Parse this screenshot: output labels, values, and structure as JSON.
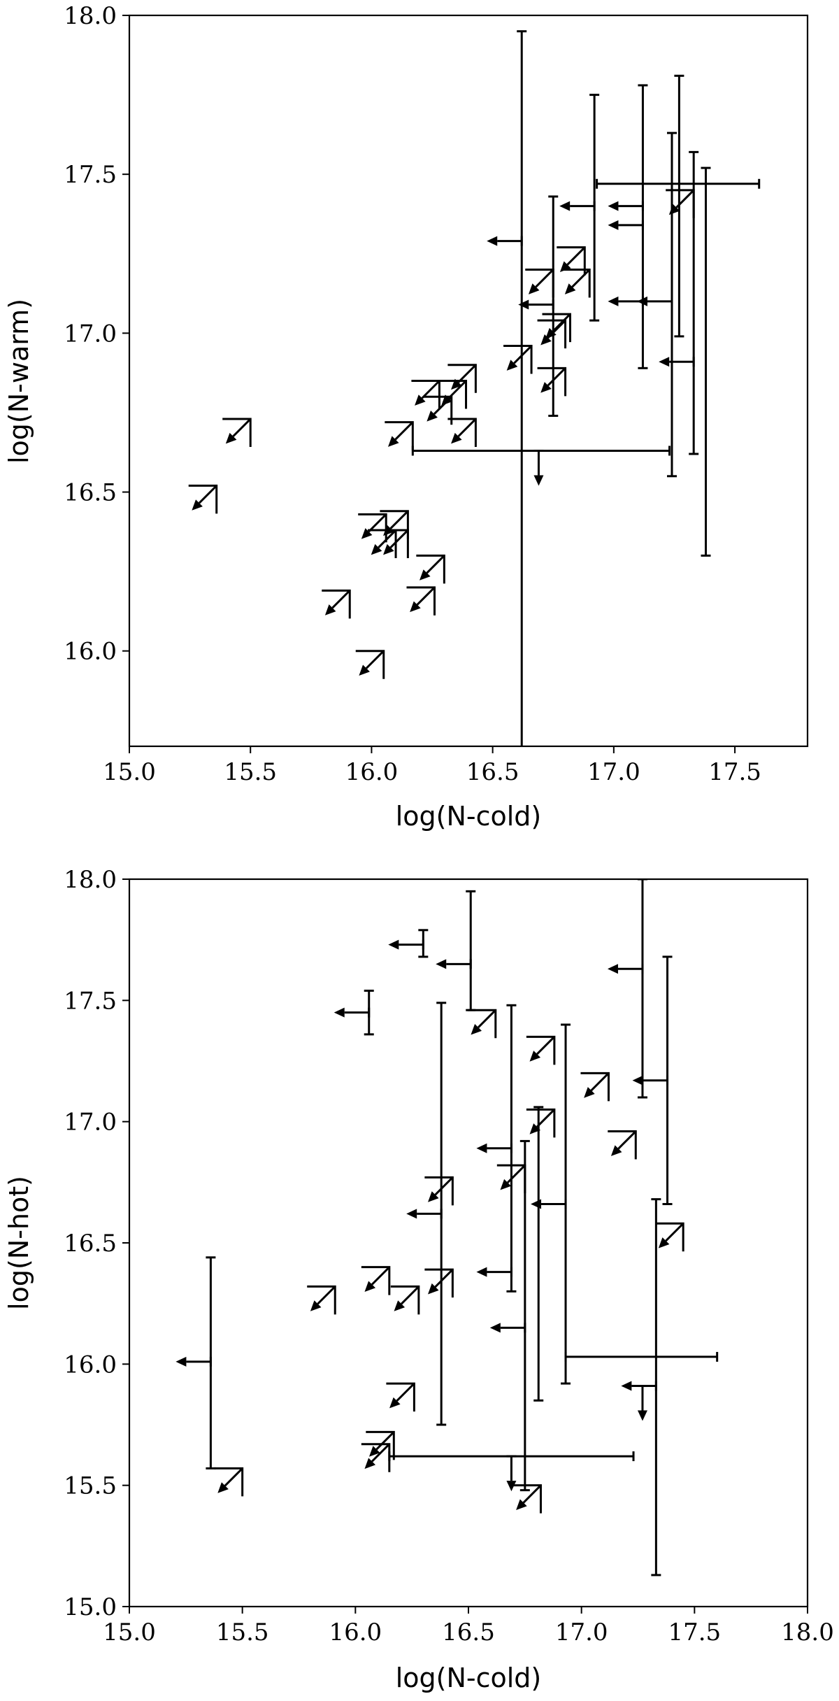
{
  "chart_data": [
    {
      "type": "scatter",
      "xlabel": "log(N-cold)",
      "ylabel": "log(N-warm)",
      "xlim": [
        15.0,
        17.8
      ],
      "ylim": [
        15.7,
        18.0
      ],
      "xticks": [
        "15.0",
        "15.5",
        "16.0",
        "16.5",
        "17.0",
        "17.5"
      ],
      "yticks": [
        "16.0",
        "16.5",
        "17.0",
        "17.5",
        "18.0"
      ],
      "grid": false,
      "points": [
        {
          "x": 16.62,
          "y": 16.63,
          "ylow": 15.0,
          "yhigh": 17.95,
          "xlow": 16.62,
          "xhigh": 16.62,
          "xl": false,
          "yl": false
        },
        {
          "x": 16.9,
          "y": 16.63,
          "xlow": 16.17,
          "xhigh": 17.23,
          "xl": false,
          "yl": false
        },
        {
          "x": 16.69,
          "y": 16.63,
          "xl": false,
          "yl": true
        },
        {
          "x": 16.92,
          "y": 17.4,
          "ylow": 17.04,
          "yhigh": 17.75,
          "xl": true,
          "yl": false
        },
        {
          "x": 17.12,
          "y": 17.4,
          "ylow": 16.89,
          "yhigh": 17.78,
          "xl": true,
          "yl": false
        },
        {
          "x": 17.27,
          "y": 17.47,
          "xlow": 16.93,
          "xhigh": 17.6,
          "xl": false,
          "yl": false
        },
        {
          "x": 17.27,
          "y": 17.4,
          "ylow": 16.99,
          "yhigh": 17.81,
          "xl": false,
          "yl": false
        },
        {
          "x": 17.24,
          "y": 17.1,
          "ylow": 16.55,
          "yhigh": 17.63,
          "xl": true,
          "yl": false
        },
        {
          "x": 17.33,
          "y": 16.91,
          "ylow": 16.62,
          "yhigh": 17.57,
          "xl": true,
          "yl": false
        },
        {
          "x": 17.38,
          "y": 16.91,
          "ylow": 16.3,
          "yhigh": 17.52,
          "xl": false,
          "yl": false
        },
        {
          "x": 17.12,
          "y": 17.1,
          "xl": true,
          "yl": false
        },
        {
          "x": 17.12,
          "y": 17.34,
          "xl": true,
          "yl": false
        },
        {
          "x": 16.62,
          "y": 17.29,
          "xl": true,
          "yl": false
        },
        {
          "x": 16.75,
          "y": 17.09,
          "ylow": 16.74,
          "yhigh": 17.43,
          "xl": true,
          "yl": false
        },
        {
          "x": 17.33,
          "y": 17.45,
          "xl": true,
          "yl": true
        },
        {
          "x": 16.9,
          "y": 17.2,
          "xl": true,
          "yl": true
        },
        {
          "x": 16.88,
          "y": 17.27,
          "xl": true,
          "yl": true
        },
        {
          "x": 16.82,
          "y": 17.06,
          "xl": true,
          "yl": true
        },
        {
          "x": 16.8,
          "y": 17.04,
          "xl": true,
          "yl": true
        },
        {
          "x": 16.8,
          "y": 16.89,
          "xl": true,
          "yl": true
        },
        {
          "x": 16.75,
          "y": 17.2,
          "xl": true,
          "yl": true
        },
        {
          "x": 16.66,
          "y": 16.96,
          "xl": true,
          "yl": true
        },
        {
          "x": 16.43,
          "y": 16.9,
          "xl": true,
          "yl": true
        },
        {
          "x": 16.39,
          "y": 16.85,
          "xl": true,
          "yl": true
        },
        {
          "x": 16.43,
          "y": 16.73,
          "xl": true,
          "yl": true
        },
        {
          "x": 16.33,
          "y": 16.8,
          "xl": true,
          "yl": true
        },
        {
          "x": 16.28,
          "y": 16.85,
          "xl": true,
          "yl": true
        },
        {
          "x": 16.17,
          "y": 16.72,
          "xl": true,
          "yl": true
        },
        {
          "x": 15.5,
          "y": 16.73,
          "xl": true,
          "yl": true
        },
        {
          "x": 15.36,
          "y": 16.52,
          "xl": true,
          "yl": true
        },
        {
          "x": 16.15,
          "y": 16.44,
          "xl": true,
          "yl": true
        },
        {
          "x": 16.15,
          "y": 16.38,
          "xl": true,
          "yl": true
        },
        {
          "x": 16.1,
          "y": 16.38,
          "xl": true,
          "yl": true
        },
        {
          "x": 16.06,
          "y": 16.43,
          "xl": true,
          "yl": true
        },
        {
          "x": 16.3,
          "y": 16.3,
          "xl": true,
          "yl": true
        },
        {
          "x": 16.26,
          "y": 16.2,
          "xl": true,
          "yl": true
        },
        {
          "x": 15.91,
          "y": 16.19,
          "xl": true,
          "yl": true
        },
        {
          "x": 16.05,
          "y": 16.0,
          "xl": true,
          "yl": true
        }
      ]
    },
    {
      "type": "scatter",
      "xlabel": "log(N-cold)",
      "ylabel": "log(N-hot)",
      "xlim": [
        15.0,
        18.0
      ],
      "ylim": [
        15.0,
        18.0
      ],
      "xticks": [
        "15.0",
        "15.5",
        "16.0",
        "16.5",
        "17.0",
        "17.5",
        "18.0"
      ],
      "yticks": [
        "15.0",
        "15.5",
        "16.0",
        "16.5",
        "17.0",
        "17.5",
        "18.0"
      ],
      "grid": false,
      "points": [
        {
          "x": 16.3,
          "y": 17.73,
          "ylow": 17.68,
          "yhigh": 17.79,
          "xl": true,
          "yl": false
        },
        {
          "x": 16.06,
          "y": 17.45,
          "ylow": 17.36,
          "yhigh": 17.54,
          "xl": true,
          "yl": false
        },
        {
          "x": 16.51,
          "y": 17.65,
          "ylow": 17.46,
          "yhigh": 17.95,
          "xl": true,
          "yl": false
        },
        {
          "x": 17.27,
          "y": 17.63,
          "ylow": 17.1,
          "yhigh": 18.0,
          "xl": true,
          "yl": false
        },
        {
          "x": 17.38,
          "y": 17.17,
          "ylow": 16.66,
          "yhigh": 17.68,
          "xl": true,
          "yl": false
        },
        {
          "x": 16.38,
          "y": 16.62,
          "ylow": 15.75,
          "yhigh": 17.49,
          "xl": true,
          "yl": false
        },
        {
          "x": 16.69,
          "y": 16.89,
          "ylow": 16.3,
          "yhigh": 17.48,
          "xl": true,
          "yl": false
        },
        {
          "x": 16.93,
          "y": 16.66,
          "ylow": 15.92,
          "yhigh": 17.4,
          "xl": true,
          "yl": false
        },
        {
          "x": 16.81,
          "y": 16.66,
          "ylow": 15.85,
          "yhigh": 17.06,
          "xl": false,
          "yl": false
        },
        {
          "x": 16.69,
          "y": 16.38,
          "xl": true,
          "yl": false
        },
        {
          "x": 16.75,
          "y": 16.15,
          "ylow": 15.48,
          "yhigh": 16.92,
          "xl": true,
          "yl": false
        },
        {
          "x": 15.36,
          "y": 16.01,
          "ylow": 15.57,
          "yhigh": 16.44,
          "xl": true,
          "yl": false
        },
        {
          "x": 17.27,
          "y": 16.03,
          "xlow": 16.93,
          "xhigh": 17.6,
          "xl": false,
          "yl": false
        },
        {
          "x": 17.33,
          "y": 15.91,
          "ylow": 15.13,
          "yhigh": 16.68,
          "xl": true,
          "yl": false
        },
        {
          "x": 17.27,
          "y": 15.91,
          "xl": false,
          "yl": true
        },
        {
          "x": 16.69,
          "y": 15.62,
          "xlow": 16.15,
          "xhigh": 17.23,
          "xl": false,
          "yl": true
        },
        {
          "x": 16.62,
          "y": 17.46,
          "xl": true,
          "yl": true
        },
        {
          "x": 16.88,
          "y": 17.35,
          "xl": true,
          "yl": true
        },
        {
          "x": 17.12,
          "y": 17.2,
          "xl": true,
          "yl": true
        },
        {
          "x": 16.88,
          "y": 17.05,
          "xl": true,
          "yl": true
        },
        {
          "x": 17.24,
          "y": 16.96,
          "xl": true,
          "yl": true
        },
        {
          "x": 16.75,
          "y": 16.82,
          "xl": true,
          "yl": true
        },
        {
          "x": 16.43,
          "y": 16.77,
          "xl": true,
          "yl": true
        },
        {
          "x": 17.45,
          "y": 16.58,
          "xl": true,
          "yl": true
        },
        {
          "x": 16.15,
          "y": 16.4,
          "xl": true,
          "yl": true
        },
        {
          "x": 16.43,
          "y": 16.39,
          "xl": true,
          "yl": true
        },
        {
          "x": 16.28,
          "y": 16.32,
          "xl": true,
          "yl": true
        },
        {
          "x": 15.91,
          "y": 16.32,
          "xl": true,
          "yl": true
        },
        {
          "x": 16.26,
          "y": 15.92,
          "xl": true,
          "yl": true
        },
        {
          "x": 16.17,
          "y": 15.72,
          "xl": true,
          "yl": true
        },
        {
          "x": 16.15,
          "y": 15.67,
          "xl": true,
          "yl": true
        },
        {
          "x": 16.82,
          "y": 15.5,
          "xl": true,
          "yl": true
        },
        {
          "x": 15.5,
          "y": 15.57,
          "xl": true,
          "yl": true
        }
      ]
    }
  ]
}
